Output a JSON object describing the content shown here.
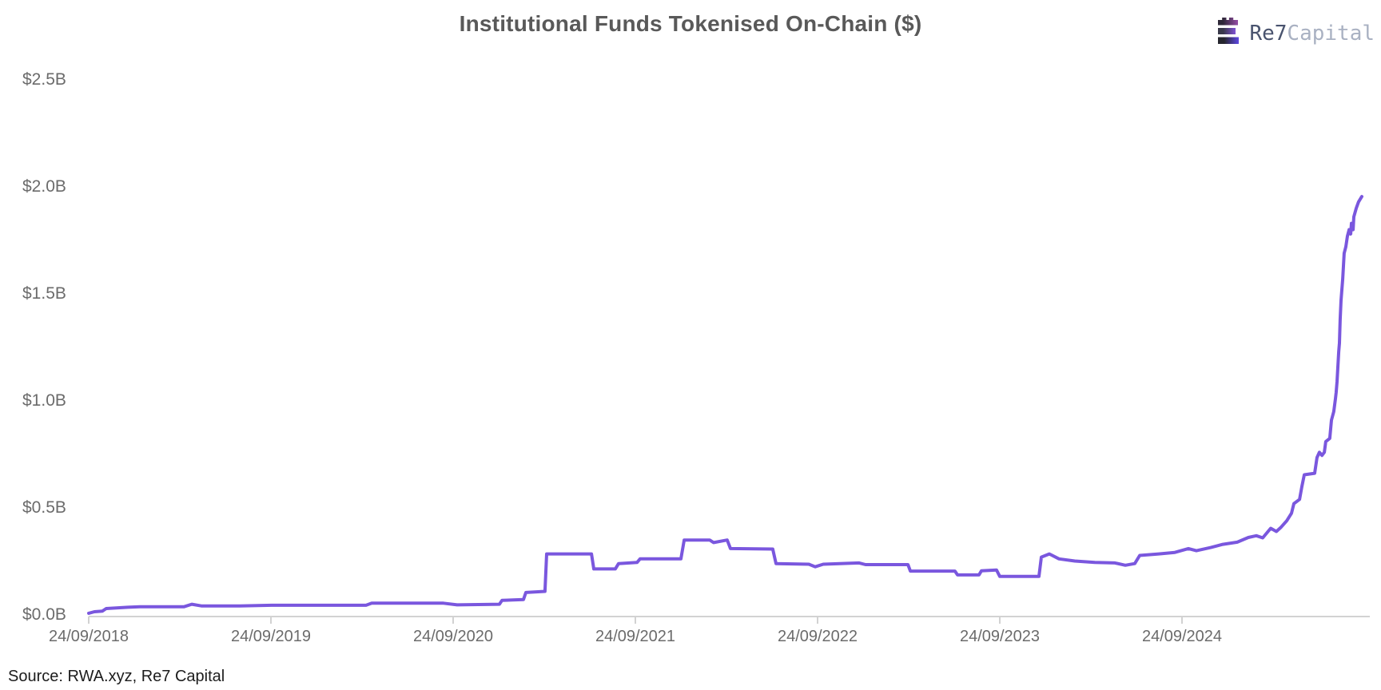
{
  "page": {
    "title": "Institutional Funds Tokenised On-Chain ($)",
    "source": "Source: RWA.xyz, Re7 Capital",
    "logo": {
      "brand_bold": "Re7",
      "brand_light": "Capital"
    }
  },
  "colors": {
    "line": "#7a57de",
    "title_text": "#595959",
    "axis_text": "#6b6b6b",
    "axis_line": "#d2d2d2",
    "source_text": "#1c1c1c",
    "logo_dark": "#49536e",
    "logo_light": "#a9b1c2"
  },
  "chart_data": {
    "type": "line",
    "title": "Institutional Funds Tokenised On-Chain ($)",
    "xlabel": "",
    "ylabel": "",
    "unit": "USD billions",
    "grid": false,
    "legend": "none",
    "source": "Source: RWA.xyz, Re7 Capital",
    "x_axis": {
      "tick_labels": [
        "24/09/2018",
        "24/09/2019",
        "24/09/2020",
        "24/09/2021",
        "24/09/2022",
        "24/09/2023",
        "24/09/2024"
      ],
      "tick_positions_years": [
        0,
        1,
        2,
        3,
        4,
        5,
        6
      ],
      "units": "years since 24/09/2018",
      "range_years": [
        0,
        7.02
      ]
    },
    "y_axis": {
      "tick_labels": [
        "$0.0B",
        "$0.5B",
        "$1.0B",
        "$1.5B",
        "$2.0B",
        "$2.5B"
      ],
      "tick_values": [
        0,
        0.5,
        1.0,
        1.5,
        2.0,
        2.5
      ],
      "ylim": [
        0,
        2.5
      ]
    },
    "series": [
      {
        "name": "Institutional funds tokenised on-chain ($B)",
        "points_format": "[years_since_2018-09-24, value_in_$B]",
        "points": [
          [
            0.0,
            0.008
          ],
          [
            0.031,
            0.015
          ],
          [
            0.075,
            0.018
          ],
          [
            0.096,
            0.03
          ],
          [
            0.215,
            0.036
          ],
          [
            0.281,
            0.038
          ],
          [
            0.522,
            0.038
          ],
          [
            0.566,
            0.05
          ],
          [
            0.618,
            0.042
          ],
          [
            0.829,
            0.042
          ],
          [
            1.004,
            0.045
          ],
          [
            1.311,
            0.045
          ],
          [
            1.522,
            0.045
          ],
          [
            1.553,
            0.055
          ],
          [
            1.947,
            0.055
          ],
          [
            2.022,
            0.047
          ],
          [
            2.254,
            0.05
          ],
          [
            2.268,
            0.068
          ],
          [
            2.386,
            0.072
          ],
          [
            2.399,
            0.105
          ],
          [
            2.504,
            0.11
          ],
          [
            2.513,
            0.285
          ],
          [
            2.759,
            0.285
          ],
          [
            2.772,
            0.215
          ],
          [
            2.89,
            0.215
          ],
          [
            2.908,
            0.24
          ],
          [
            3.009,
            0.245
          ],
          [
            3.026,
            0.262
          ],
          [
            3.25,
            0.262
          ],
          [
            3.268,
            0.35
          ],
          [
            3.408,
            0.35
          ],
          [
            3.43,
            0.338
          ],
          [
            3.504,
            0.35
          ],
          [
            3.522,
            0.31
          ],
          [
            3.754,
            0.308
          ],
          [
            3.772,
            0.24
          ],
          [
            3.952,
            0.237
          ],
          [
            3.987,
            0.225
          ],
          [
            4.031,
            0.237
          ],
          [
            4.228,
            0.243
          ],
          [
            4.263,
            0.235
          ],
          [
            4.496,
            0.235
          ],
          [
            4.509,
            0.205
          ],
          [
            4.754,
            0.205
          ],
          [
            4.768,
            0.187
          ],
          [
            4.886,
            0.187
          ],
          [
            4.899,
            0.206
          ],
          [
            4.982,
            0.21
          ],
          [
            5.0,
            0.18
          ],
          [
            5.215,
            0.18
          ],
          [
            5.228,
            0.27
          ],
          [
            5.272,
            0.285
          ],
          [
            5.325,
            0.262
          ],
          [
            5.412,
            0.252
          ],
          [
            5.522,
            0.245
          ],
          [
            5.632,
            0.243
          ],
          [
            5.689,
            0.232
          ],
          [
            5.741,
            0.24
          ],
          [
            5.768,
            0.278
          ],
          [
            5.873,
            0.285
          ],
          [
            5.961,
            0.292
          ],
          [
            6.035,
            0.31
          ],
          [
            6.079,
            0.3
          ],
          [
            6.158,
            0.315
          ],
          [
            6.224,
            0.33
          ],
          [
            6.303,
            0.34
          ],
          [
            6.364,
            0.362
          ],
          [
            6.408,
            0.37
          ],
          [
            6.443,
            0.36
          ],
          [
            6.487,
            0.405
          ],
          [
            6.518,
            0.39
          ],
          [
            6.544,
            0.41
          ],
          [
            6.575,
            0.44
          ],
          [
            6.601,
            0.475
          ],
          [
            6.614,
            0.52
          ],
          [
            6.645,
            0.54
          ],
          [
            6.658,
            0.6
          ],
          [
            6.671,
            0.655
          ],
          [
            6.728,
            0.662
          ],
          [
            6.741,
            0.735
          ],
          [
            6.754,
            0.76
          ],
          [
            6.768,
            0.745
          ],
          [
            6.781,
            0.76
          ],
          [
            6.789,
            0.81
          ],
          [
            6.811,
            0.825
          ],
          [
            6.82,
            0.91
          ],
          [
            6.833,
            0.95
          ],
          [
            6.842,
            1.01
          ],
          [
            6.846,
            1.04
          ],
          [
            6.851,
            1.09
          ],
          [
            6.86,
            1.23
          ],
          [
            6.864,
            1.27
          ],
          [
            6.868,
            1.38
          ],
          [
            6.873,
            1.47
          ],
          [
            6.882,
            1.57
          ],
          [
            6.886,
            1.63
          ],
          [
            6.89,
            1.69
          ],
          [
            6.899,
            1.72
          ],
          [
            6.908,
            1.77
          ],
          [
            6.917,
            1.8
          ],
          [
            6.926,
            1.78
          ],
          [
            6.93,
            1.83
          ],
          [
            6.939,
            1.8
          ],
          [
            6.943,
            1.86
          ],
          [
            6.956,
            1.9
          ],
          [
            6.969,
            1.93
          ],
          [
            6.987,
            1.955
          ]
        ]
      }
    ]
  }
}
